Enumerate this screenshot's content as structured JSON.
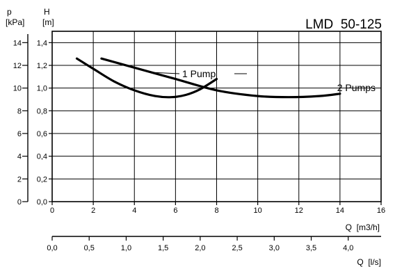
{
  "chart_data": {
    "type": "line",
    "title": "LMD  50-125",
    "y_left_outer": {
      "symbol": "p",
      "unit": "[kPa]",
      "ticks": [
        "0",
        "2",
        "4",
        "6",
        "8",
        "10",
        "12",
        "14"
      ],
      "ylim": [
        0,
        15
      ]
    },
    "y_left_inner": {
      "symbol": "H",
      "unit": "[m]",
      "ticks": [
        "0,0",
        "0,2",
        "0,4",
        "0,6",
        "0,8",
        "1,0",
        "1,2",
        "1,4"
      ],
      "ylim": [
        0,
        1.5
      ]
    },
    "x_top": {
      "label": "Q  [m3/h]",
      "ticks": [
        "0",
        "2",
        "4",
        "6",
        "8",
        "10",
        "12",
        "14",
        "16"
      ],
      "xlim": [
        0,
        16
      ]
    },
    "x_bottom": {
      "label": "Q  [l/s]",
      "ticks": [
        "0,0",
        "0,5",
        "1,0",
        "1,5",
        "2,0",
        "2,5",
        "3,0",
        "3,5",
        "4,0"
      ],
      "xlim": [
        0,
        4.444
      ]
    },
    "grid": true,
    "series": [
      {
        "name": "1  Pump",
        "x": [
          1.2,
          2,
          3,
          4,
          5,
          5.8,
          6.5,
          7.2,
          8.0
        ],
        "y": [
          1.26,
          1.17,
          1.06,
          0.98,
          0.93,
          0.92,
          0.94,
          0.99,
          1.08
        ]
      },
      {
        "name": "2  Pumps",
        "x": [
          2.4,
          4,
          6,
          8,
          10,
          11.5,
          13,
          14
        ],
        "y": [
          1.26,
          1.18,
          1.08,
          0.98,
          0.93,
          0.92,
          0.93,
          0.95
        ]
      }
    ]
  }
}
